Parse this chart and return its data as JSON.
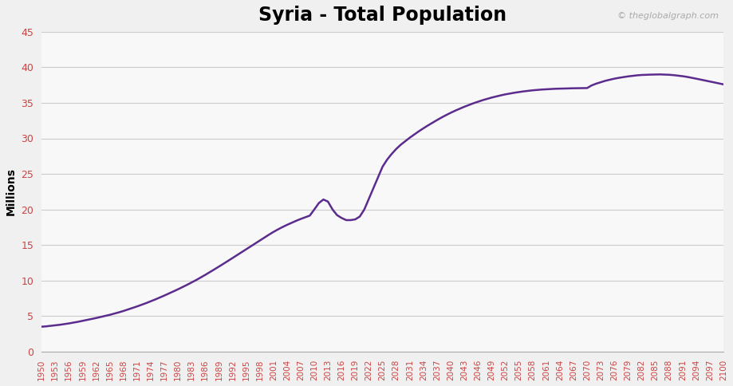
{
  "title": "Syria - Total Population",
  "ylabel": "Millions",
  "watermark": "© theglobalgraph.com",
  "line_color": "#5B2C8D",
  "line_width": 1.8,
  "fig_background_color": "#f0f0f0",
  "plot_background_color": "#f8f8f8",
  "ylim": [
    0,
    45
  ],
  "yticks": [
    0,
    5,
    10,
    15,
    20,
    25,
    30,
    35,
    40,
    45
  ],
  "years": [
    1950,
    1951,
    1952,
    1953,
    1954,
    1955,
    1956,
    1957,
    1958,
    1959,
    1960,
    1961,
    1962,
    1963,
    1964,
    1965,
    1966,
    1967,
    1968,
    1969,
    1970,
    1971,
    1972,
    1973,
    1974,
    1975,
    1976,
    1977,
    1978,
    1979,
    1980,
    1981,
    1982,
    1983,
    1984,
    1985,
    1986,
    1987,
    1988,
    1989,
    1990,
    1991,
    1992,
    1993,
    1994,
    1995,
    1996,
    1997,
    1998,
    1999,
    2000,
    2001,
    2002,
    2003,
    2004,
    2005,
    2006,
    2007,
    2008,
    2009,
    2010,
    2011,
    2012,
    2013,
    2014,
    2015,
    2016,
    2017,
    2018,
    2019,
    2020,
    2021,
    2022,
    2023,
    2024,
    2025,
    2026,
    2027,
    2028,
    2029,
    2030,
    2031,
    2032,
    2033,
    2034,
    2035,
    2036,
    2037,
    2038,
    2039,
    2040,
    2041,
    2042,
    2043,
    2044,
    2045,
    2046,
    2047,
    2048,
    2049,
    2050,
    2051,
    2052,
    2053,
    2054,
    2055,
    2056,
    2057,
    2058,
    2059,
    2060,
    2061,
    2062,
    2063,
    2064,
    2065,
    2066,
    2067,
    2068,
    2069,
    2070,
    2071,
    2072,
    2073,
    2074,
    2075,
    2076,
    2077,
    2078,
    2079,
    2080,
    2081,
    2082,
    2083,
    2084,
    2085,
    2086,
    2087,
    2088,
    2089,
    2090,
    2091,
    2092,
    2093,
    2094,
    2095,
    2096,
    2097,
    2098,
    2099,
    2100
  ],
  "population": [
    3.5,
    3.55,
    3.62,
    3.69,
    3.77,
    3.86,
    3.96,
    4.07,
    4.19,
    4.32,
    4.45,
    4.58,
    4.72,
    4.87,
    5.02,
    5.17,
    5.34,
    5.52,
    5.71,
    5.92,
    6.13,
    6.35,
    6.58,
    6.82,
    7.07,
    7.33,
    7.6,
    7.88,
    8.17,
    8.46,
    8.76,
    9.07,
    9.39,
    9.72,
    10.06,
    10.42,
    10.79,
    11.17,
    11.56,
    11.95,
    12.35,
    12.75,
    13.16,
    13.57,
    13.98,
    14.39,
    14.8,
    15.21,
    15.63,
    16.04,
    16.44,
    16.83,
    17.19,
    17.52,
    17.83,
    18.12,
    18.4,
    18.66,
    18.9,
    19.13,
    20.0,
    20.9,
    21.4,
    21.1,
    20.0,
    19.2,
    18.8,
    18.5,
    18.5,
    18.6,
    19.0,
    20.0,
    21.5,
    23.0,
    24.5,
    26.0,
    27.0,
    27.8,
    28.5,
    29.1,
    29.6,
    30.1,
    30.55,
    31.0,
    31.42,
    31.82,
    32.2,
    32.58,
    32.94,
    33.28,
    33.6,
    33.9,
    34.18,
    34.45,
    34.7,
    34.94,
    35.16,
    35.37,
    35.56,
    35.74,
    35.9,
    36.05,
    36.19,
    36.31,
    36.42,
    36.52,
    36.61,
    36.69,
    36.76,
    36.82,
    36.87,
    36.91,
    36.95,
    36.98,
    37.0,
    37.02,
    37.04,
    37.05,
    37.06,
    37.07,
    37.08,
    37.45,
    37.7,
    37.9,
    38.1,
    38.25,
    38.4,
    38.52,
    38.62,
    38.72,
    38.8,
    38.87,
    38.92,
    38.95,
    38.97,
    38.99,
    39.0,
    38.98,
    38.95,
    38.9,
    38.83,
    38.75,
    38.65,
    38.53,
    38.4,
    38.27,
    38.13,
    38.0,
    37.87,
    37.73,
    37.6
  ]
}
